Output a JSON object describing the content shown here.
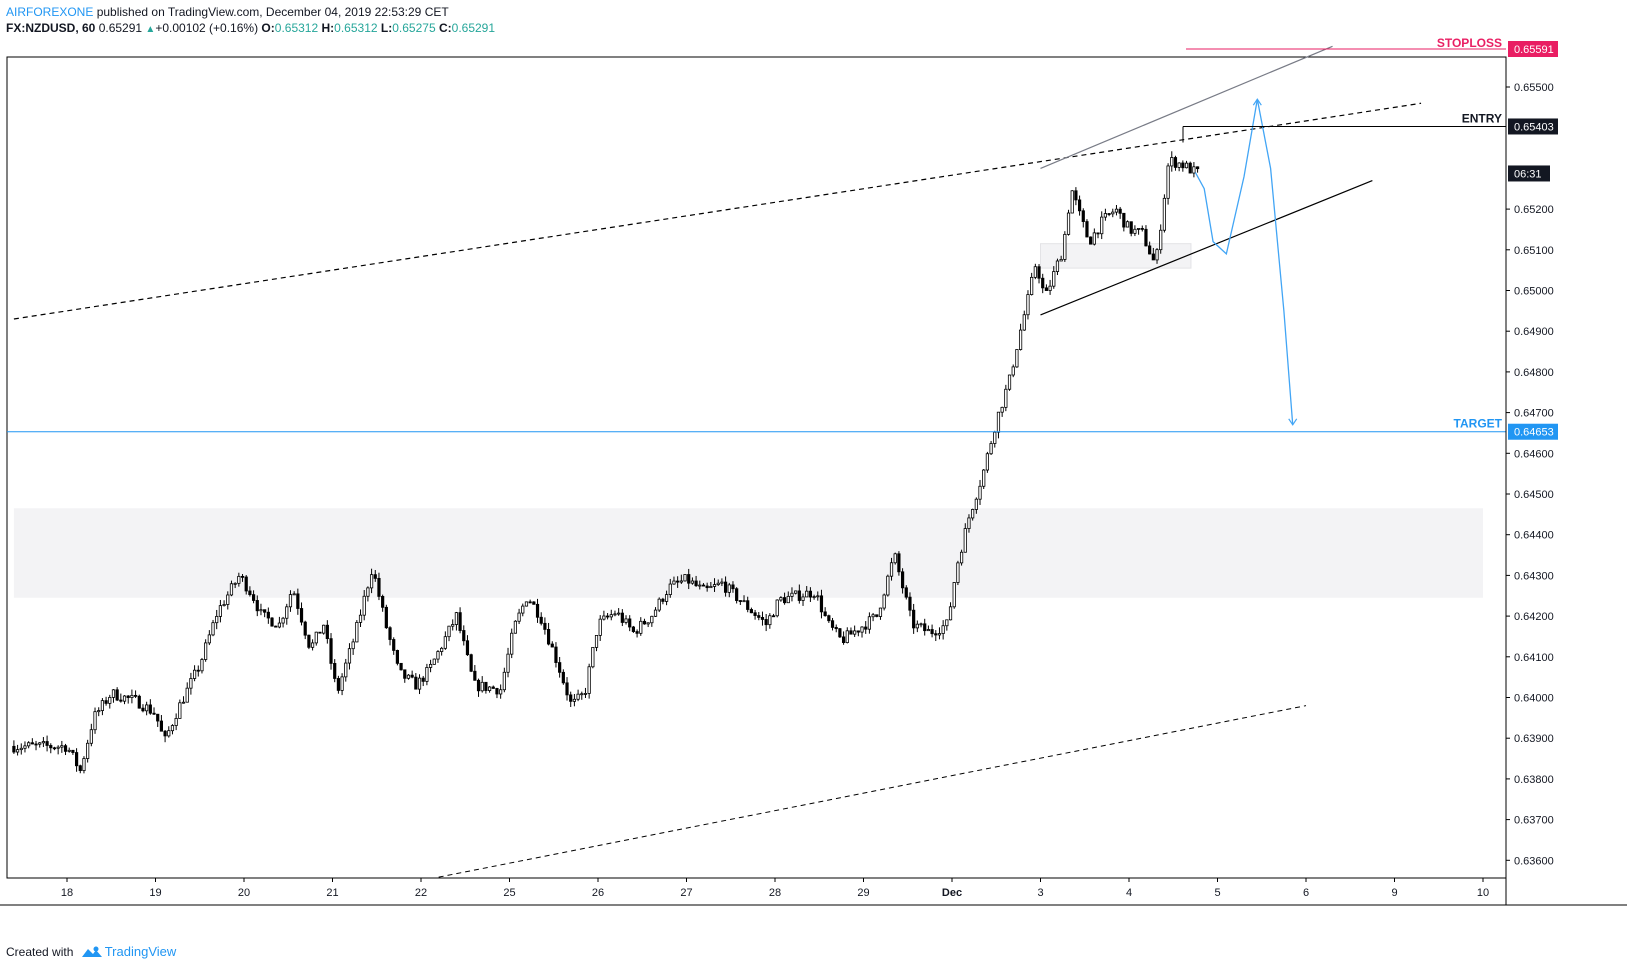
{
  "header": {
    "author": "AIRFOREXONE",
    "published": " published on TradingView.com, December 04, 2019 22:53:29 CET",
    "symbol": "FX:NZDUSD, 60",
    "last": "0.65291",
    "change": "+0.00102 (+0.16%)",
    "o_label": "O:",
    "o": "0.65312",
    "h_label": "H:",
    "h": "0.65312",
    "l_label": "L:",
    "l": "0.65275",
    "c_label": "C:",
    "c": "0.65291"
  },
  "footer": {
    "created": "Created with",
    "brand": "TradingView"
  },
  "colors": {
    "candle": "#000000",
    "target": "#2196f3",
    "stoploss": "#e91e63",
    "path": "#42a5f5",
    "zone": "#f3f3f5",
    "accent": "#26a69a"
  },
  "chart_data": {
    "type": "candlestick",
    "symbol": "FX:NZDUSD",
    "timeframe": "60",
    "x_ticks": [
      "18",
      "19",
      "20",
      "21",
      "22",
      "25",
      "26",
      "27",
      "28",
      "29",
      "Dec",
      "3",
      "4",
      "5",
      "6",
      "9",
      "10"
    ],
    "y_ticks": [
      "0.65500",
      "0.65200",
      "0.65100",
      "0.65000",
      "0.64900",
      "0.64800",
      "0.64700",
      "0.64600",
      "0.64500",
      "0.64400",
      "0.64300",
      "0.64200",
      "0.64100",
      "0.64000",
      "0.63900",
      "0.63800",
      "0.63700",
      "0.63600"
    ],
    "ylim": [
      0.6355,
      0.6561
    ],
    "levels": [
      {
        "name": "STOPLOSS",
        "value": 0.65591,
        "label": "0.65591"
      },
      {
        "name": "ENTRY",
        "value": 0.65403,
        "label": "0.65403"
      },
      {
        "name": "TARGET",
        "value": 0.64653,
        "label": "0.64653"
      }
    ],
    "last_price_label": "06:31",
    "close_series": [
      {
        "t": 0.0,
        "v": 0.6388
      },
      {
        "t": 0.15,
        "v": 0.6382
      },
      {
        "t": 0.3,
        "v": 0.6395
      },
      {
        "t": 0.5,
        "v": 0.6401
      },
      {
        "t": 0.8,
        "v": 0.6399
      },
      {
        "t": 1.0,
        "v": 0.6396
      },
      {
        "t": 1.1,
        "v": 0.6389
      },
      {
        "t": 1.25,
        "v": 0.6397
      },
      {
        "t": 1.5,
        "v": 0.6408
      },
      {
        "t": 1.7,
        "v": 0.6421
      },
      {
        "t": 1.95,
        "v": 0.643
      },
      {
        "t": 2.1,
        "v": 0.6425
      },
      {
        "t": 2.2,
        "v": 0.642
      },
      {
        "t": 2.4,
        "v": 0.6418
      },
      {
        "t": 2.55,
        "v": 0.6427
      },
      {
        "t": 2.75,
        "v": 0.6412
      },
      {
        "t": 2.9,
        "v": 0.6418
      },
      {
        "t": 3.05,
        "v": 0.6401
      },
      {
        "t": 3.25,
        "v": 0.6415
      },
      {
        "t": 3.45,
        "v": 0.6432
      },
      {
        "t": 3.6,
        "v": 0.6418
      },
      {
        "t": 3.75,
        "v": 0.6406
      },
      {
        "t": 3.95,
        "v": 0.6403
      },
      {
        "t": 4.1,
        "v": 0.6407
      },
      {
        "t": 4.4,
        "v": 0.642
      },
      {
        "t": 4.6,
        "v": 0.6403
      },
      {
        "t": 4.9,
        "v": 0.6402
      },
      {
        "t": 5.05,
        "v": 0.6417
      },
      {
        "t": 5.2,
        "v": 0.6425
      },
      {
        "t": 5.35,
        "v": 0.642
      },
      {
        "t": 5.55,
        "v": 0.6408
      },
      {
        "t": 5.7,
        "v": 0.6398
      },
      {
        "t": 5.85,
        "v": 0.6401
      },
      {
        "t": 6.0,
        "v": 0.6418
      },
      {
        "t": 6.2,
        "v": 0.6421
      },
      {
        "t": 6.4,
        "v": 0.6416
      },
      {
        "t": 6.6,
        "v": 0.642
      },
      {
        "t": 6.8,
        "v": 0.6427
      },
      {
        "t": 7.0,
        "v": 0.6429
      },
      {
        "t": 7.2,
        "v": 0.6426
      },
      {
        "t": 7.4,
        "v": 0.6428
      },
      {
        "t": 7.6,
        "v": 0.6424
      },
      {
        "t": 7.75,
        "v": 0.6421
      },
      {
        "t": 7.9,
        "v": 0.6418
      },
      {
        "t": 8.05,
        "v": 0.6424
      },
      {
        "t": 8.25,
        "v": 0.6425
      },
      {
        "t": 8.45,
        "v": 0.6426
      },
      {
        "t": 8.6,
        "v": 0.6418
      },
      {
        "t": 8.75,
        "v": 0.6414
      },
      {
        "t": 8.95,
        "v": 0.6417
      },
      {
        "t": 9.15,
        "v": 0.642
      },
      {
        "t": 9.35,
        "v": 0.6435
      },
      {
        "t": 9.55,
        "v": 0.6418
      },
      {
        "t": 9.75,
        "v": 0.6416
      },
      {
        "t": 9.95,
        "v": 0.6418
      },
      {
        "t": 10.05,
        "v": 0.6432
      },
      {
        "t": 10.2,
        "v": 0.6445
      },
      {
        "t": 10.35,
        "v": 0.6455
      },
      {
        "t": 10.5,
        "v": 0.6468
      },
      {
        "t": 10.65,
        "v": 0.6478
      },
      {
        "t": 10.75,
        "v": 0.6488
      },
      {
        "t": 10.85,
        "v": 0.6497
      },
      {
        "t": 10.95,
        "v": 0.6507
      },
      {
        "t": 11.05,
        "v": 0.6498
      },
      {
        "t": 11.15,
        "v": 0.6504
      },
      {
        "t": 11.25,
        "v": 0.651
      },
      {
        "t": 11.35,
        "v": 0.6525
      },
      {
        "t": 11.45,
        "v": 0.6518
      },
      {
        "t": 11.55,
        "v": 0.6512
      },
      {
        "t": 11.7,
        "v": 0.6517
      },
      {
        "t": 11.85,
        "v": 0.652
      },
      {
        "t": 12.0,
        "v": 0.6515
      },
      {
        "t": 12.15,
        "v": 0.6514
      },
      {
        "t": 12.3,
        "v": 0.6506
      },
      {
        "t": 12.45,
        "v": 0.6532
      },
      {
        "t": 12.6,
        "v": 0.6531
      },
      {
        "t": 12.75,
        "v": 0.6529
      }
    ],
    "projection": [
      {
        "t": 12.75,
        "v": 0.6529
      },
      {
        "t": 12.85,
        "v": 0.6525
      },
      {
        "t": 12.95,
        "v": 0.6512
      },
      {
        "t": 13.1,
        "v": 0.6509
      },
      {
        "t": 13.3,
        "v": 0.6528
      },
      {
        "t": 13.45,
        "v": 0.6547
      },
      {
        "t": 13.6,
        "v": 0.653
      },
      {
        "t": 13.75,
        "v": 0.6495
      },
      {
        "t": 13.85,
        "v": 0.6467
      }
    ],
    "channel_upper_solid": [
      {
        "t": 11.0,
        "v": 0.653
      },
      {
        "t": 14.3,
        "v": 0.656
      }
    ],
    "channel_lower_solid": [
      {
        "t": 11.0,
        "v": 0.6494
      },
      {
        "t": 14.75,
        "v": 0.6527
      }
    ],
    "trend_dashed_upper": [
      {
        "t": -0.6,
        "v": 0.6493
      },
      {
        "t": 15.3,
        "v": 0.6546
      }
    ],
    "trend_dashed_lower": [
      {
        "t": 4.0,
        "v": 0.6355
      },
      {
        "t": 14.0,
        "v": 0.6398
      }
    ],
    "zones": [
      {
        "y_from": 0.64245,
        "y_to": 0.64465,
        "t_from": -0.6,
        "t_to": 16.0
      },
      {
        "y_from": 0.65055,
        "y_to": 0.65115,
        "t_from": 11.0,
        "t_to": 12.7
      }
    ]
  }
}
